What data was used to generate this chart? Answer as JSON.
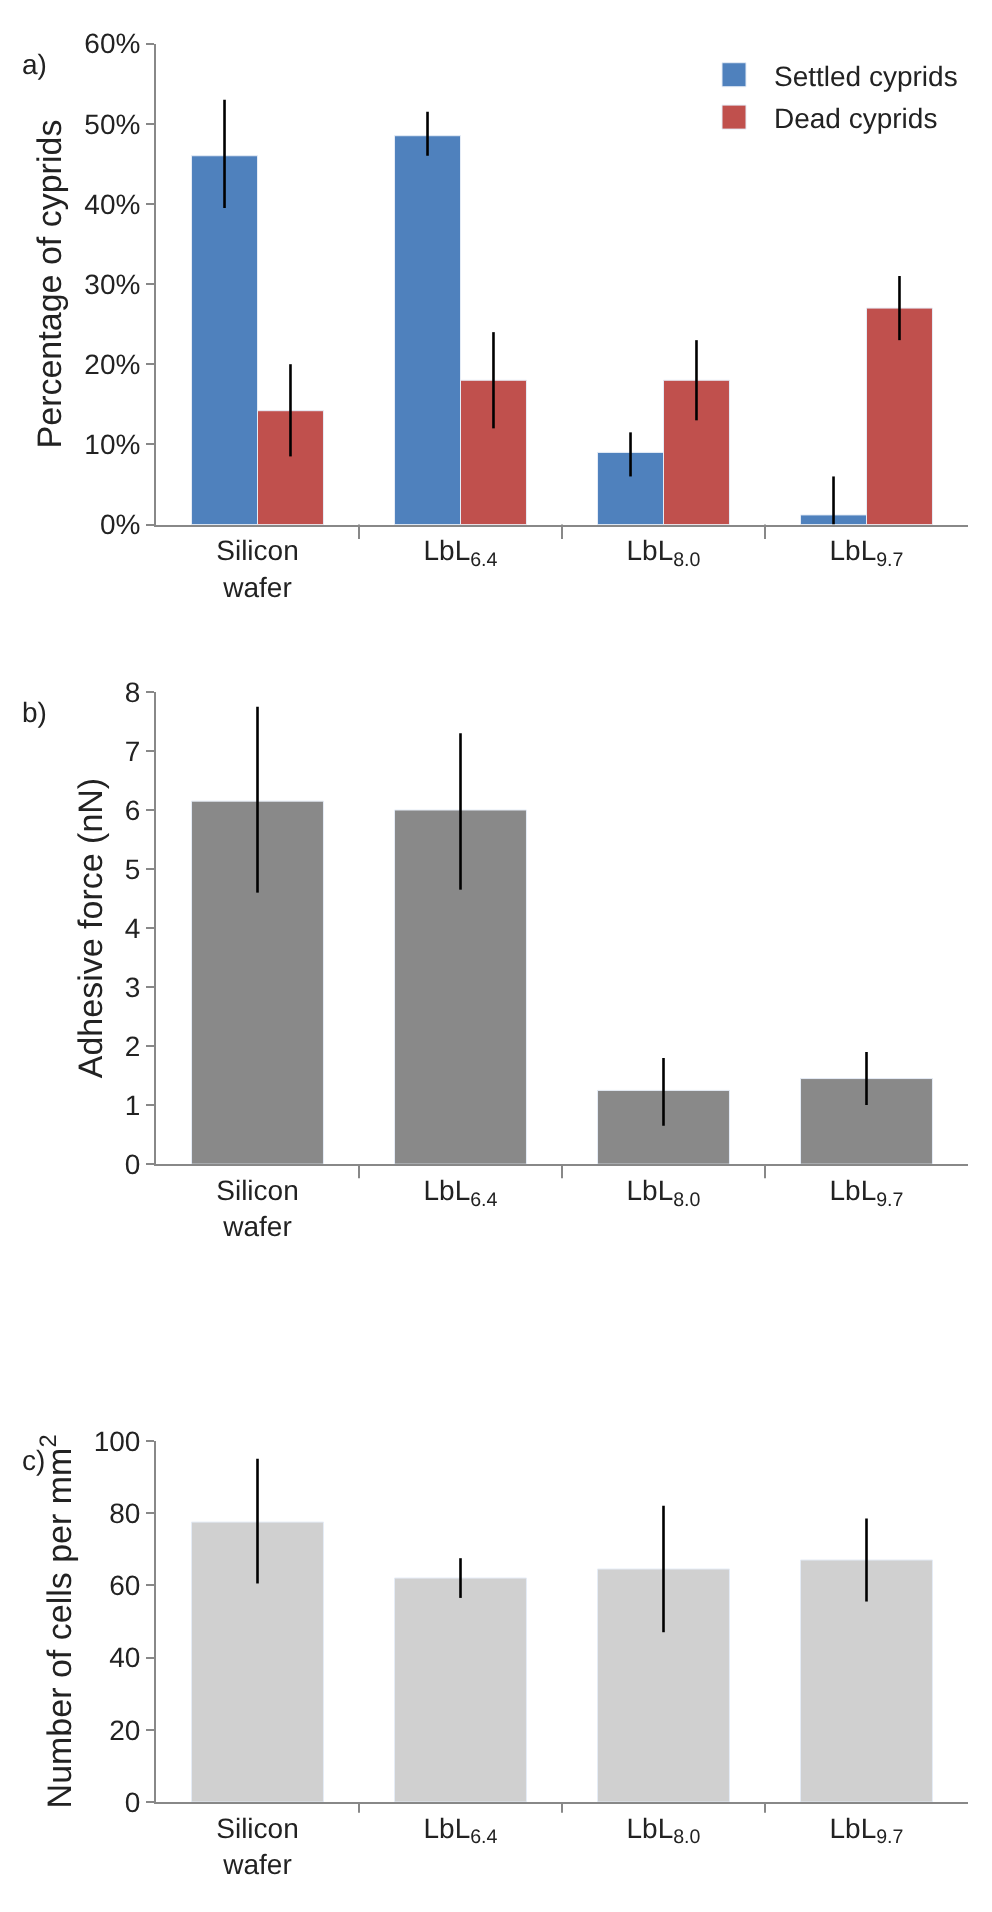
{
  "chart_data": [
    {
      "type": "bar",
      "annotations": [
        "a)"
      ],
      "ylabel": "Percentage of cyprids",
      "categories": [
        "Silicon\nwafer",
        "LbL$_{6.4}$",
        "LbL$_{8.0}$",
        "LbL$_{9.7}$"
      ],
      "series": [
        {
          "name": "Settled cyprids",
          "color": "#4f81bd",
          "values": [
            0.46,
            0.485,
            0.09,
            0.012
          ],
          "errors": [
            [
              0.395,
              0.53
            ],
            [
              0.46,
              0.515
            ],
            [
              0.06,
              0.115
            ],
            [
              0,
              0.06
            ]
          ]
        },
        {
          "name": "Dead cyprids",
          "color": "#c0504d",
          "values": [
            0.142,
            0.18,
            0.18,
            0.27
          ],
          "errors": [
            [
              0.085,
              0.2
            ],
            [
              0.12,
              0.24
            ],
            [
              0.13,
              0.23
            ],
            [
              0.23,
              0.31
            ]
          ]
        }
      ],
      "ylim": [
        0,
        0.6
      ],
      "yticks": [
        {
          "value": 0,
          "label": "0%"
        },
        {
          "value": 0.1,
          "label": "10%"
        },
        {
          "value": 0.2,
          "label": "20%"
        },
        {
          "value": 0.3,
          "label": "30%"
        },
        {
          "value": 0.4,
          "label": "40%"
        },
        {
          "value": 0.5,
          "label": "50%"
        },
        {
          "value": 0.6,
          "label": "60%"
        }
      ],
      "legend": "top right"
    },
    {
      "type": "bar",
      "annotations": [
        "b)"
      ],
      "ylabel": "Adhesive force (nN)",
      "categories": [
        "Silicon\nwafer",
        "LbL$_{6.4}$",
        "LbL$_{8.0}$",
        "LbL$_{9.7}$"
      ],
      "series": [
        {
          "color": "#898989",
          "values": [
            6.15,
            6.0,
            1.25,
            1.45
          ],
          "errors": [
            [
              4.6,
              7.75
            ],
            [
              4.65,
              7.3
            ],
            [
              0.65,
              1.8
            ],
            [
              1.0,
              1.9
            ]
          ]
        }
      ],
      "ylim": [
        0,
        8
      ],
      "yticks": [
        0,
        1,
        2,
        3,
        4,
        5,
        6,
        7,
        8
      ]
    },
    {
      "type": "bar",
      "annotations": [
        "c)"
      ],
      "ylabel": "Number of cells per mm$^{2}$",
      "categories": [
        "Silicon\nwafer",
        "LbL$_{6.4}$",
        "LbL$_{8.0}$",
        "LbL$_{9.7}$"
      ],
      "series": [
        {
          "color": "#d0d0d0",
          "values": [
            77.5,
            62,
            64.5,
            67
          ],
          "errors": [
            [
              60.5,
              95
            ],
            [
              56.5,
              67.5
            ],
            [
              47,
              82
            ],
            [
              55.5,
              78.5
            ]
          ]
        }
      ],
      "ylim": [
        0,
        100
      ],
      "yticks": [
        0,
        20,
        40,
        60,
        80,
        100
      ]
    }
  ]
}
